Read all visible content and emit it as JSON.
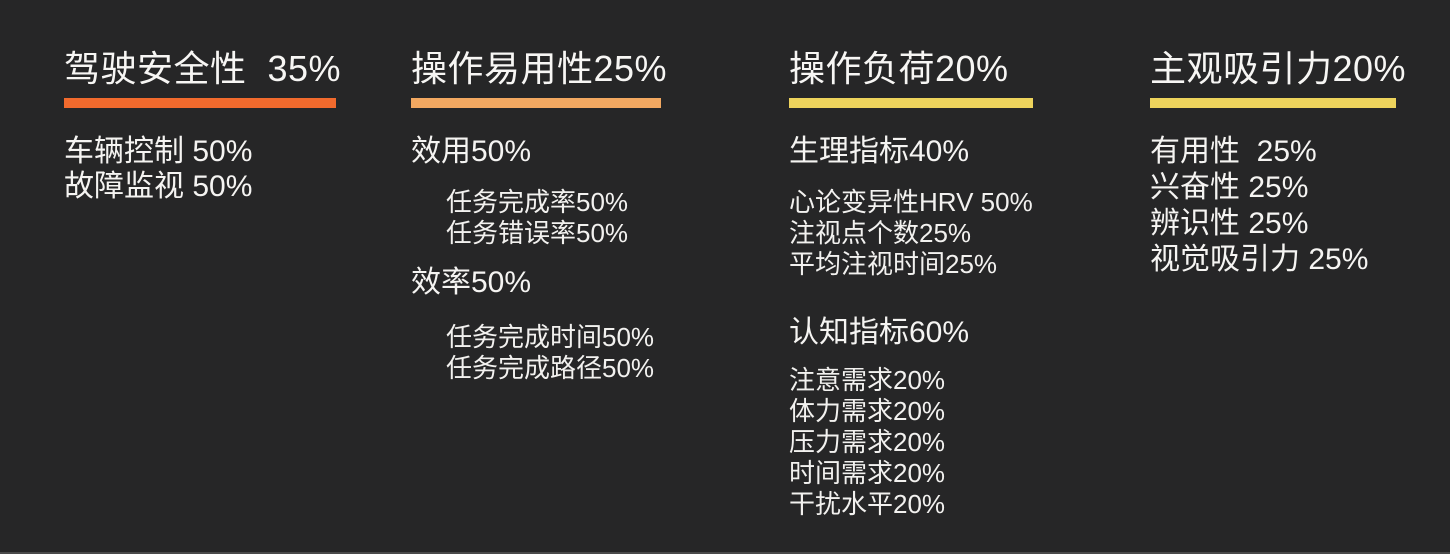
{
  "background": "#262627",
  "text_color": "#F5F4F2",
  "columns": [
    {
      "title": "驾驶安全性  35%",
      "accent_color": "#F16A2D",
      "items": [
        "车辆控制 50%",
        "故障监视 50%"
      ]
    },
    {
      "title": "操作易用性25%",
      "accent_color": "#F2A861",
      "sections": [
        {
          "label": "效用50%",
          "children": [
            "任务完成率50%",
            "任务错误率50%"
          ]
        },
        {
          "label": "效率50%",
          "children": [
            "任务完成时间50%",
            "任务完成路径50%"
          ]
        }
      ]
    },
    {
      "title": "操作负荷20%",
      "accent_color": "#EDD35C",
      "sections": [
        {
          "label": "生理指标40%",
          "children": [
            "心论变异性HRV 50%",
            "注视点个数25%",
            "平均注视时间25%"
          ]
        },
        {
          "label": "认知指标60%",
          "children": [
            "注意需求20%",
            "体力需求20%",
            "压力需求20%",
            "时间需求20%",
            "干扰水平20%"
          ]
        }
      ]
    },
    {
      "title": "主观吸引力20%",
      "accent_color": "#EDD35C",
      "items": [
        "有用性  25%",
        "兴奋性 25%",
        "辨识性 25%",
        "视觉吸引力 25%"
      ]
    }
  ]
}
